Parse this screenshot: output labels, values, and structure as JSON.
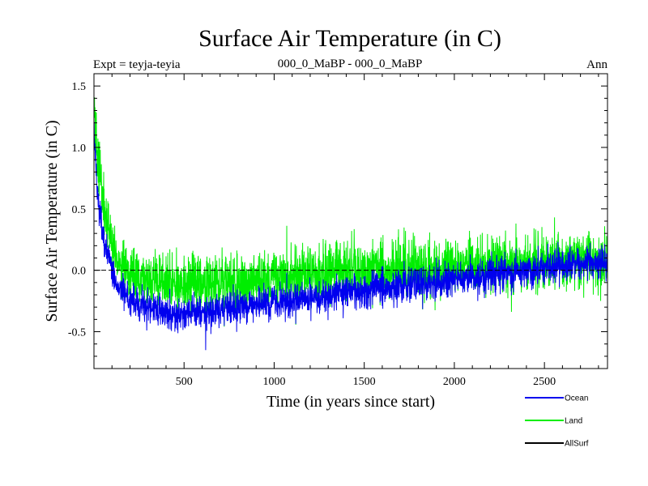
{
  "chart_data": {
    "type": "line",
    "title": "Surface Air Temperature (in C)",
    "subtitle_left": "Expt = teyja-teyia",
    "subtitle_center": "000_0_MaBP - 000_0_MaBP",
    "subtitle_right": "Ann",
    "xlabel": "Time (in years since start)",
    "ylabel": "Surface Air Temperature (in C)",
    "xlim": [
      0,
      2850
    ],
    "ylim": [
      -0.8,
      1.6
    ],
    "xticks": [
      500,
      1000,
      1500,
      2000,
      2500
    ],
    "yticks": [
      -0.5,
      0.0,
      0.5,
      1.0,
      1.5
    ],
    "xtick_labels": [
      "500",
      "1000",
      "1500",
      "2000",
      "2500"
    ],
    "ytick_labels": [
      "-0.5",
      "0.0",
      "0.5",
      "1.0",
      "1.5"
    ],
    "zero_line": 0.0,
    "series": [
      {
        "name": "Land",
        "color": "#00ee00",
        "noise": 0.22,
        "trend": [
          [
            0,
            1.35
          ],
          [
            20,
            0.9
          ],
          [
            60,
            0.45
          ],
          [
            120,
            0.1
          ],
          [
            200,
            -0.05
          ],
          [
            400,
            -0.1
          ],
          [
            600,
            -0.12
          ],
          [
            800,
            -0.12
          ],
          [
            900,
            -0.1
          ],
          [
            1100,
            -0.05
          ],
          [
            1300,
            -0.02
          ],
          [
            1600,
            0.0
          ],
          [
            2000,
            0.02
          ],
          [
            2400,
            0.05
          ],
          [
            2850,
            0.08
          ]
        ]
      },
      {
        "name": "Ocean",
        "color": "#0000ee",
        "noise": 0.13,
        "trend": [
          [
            0,
            1.1
          ],
          [
            20,
            0.6
          ],
          [
            60,
            0.2
          ],
          [
            120,
            -0.1
          ],
          [
            200,
            -0.25
          ],
          [
            400,
            -0.35
          ],
          [
            600,
            -0.35
          ],
          [
            800,
            -0.3
          ],
          [
            900,
            -0.28
          ],
          [
            1100,
            -0.25
          ],
          [
            1300,
            -0.2
          ],
          [
            1600,
            -0.15
          ],
          [
            2000,
            -0.08
          ],
          [
            2400,
            0.0
          ],
          [
            2850,
            0.08
          ]
        ]
      },
      {
        "name": "AllSurf",
        "color": "#000000",
        "noise": 0.0,
        "trend": []
      }
    ]
  }
}
